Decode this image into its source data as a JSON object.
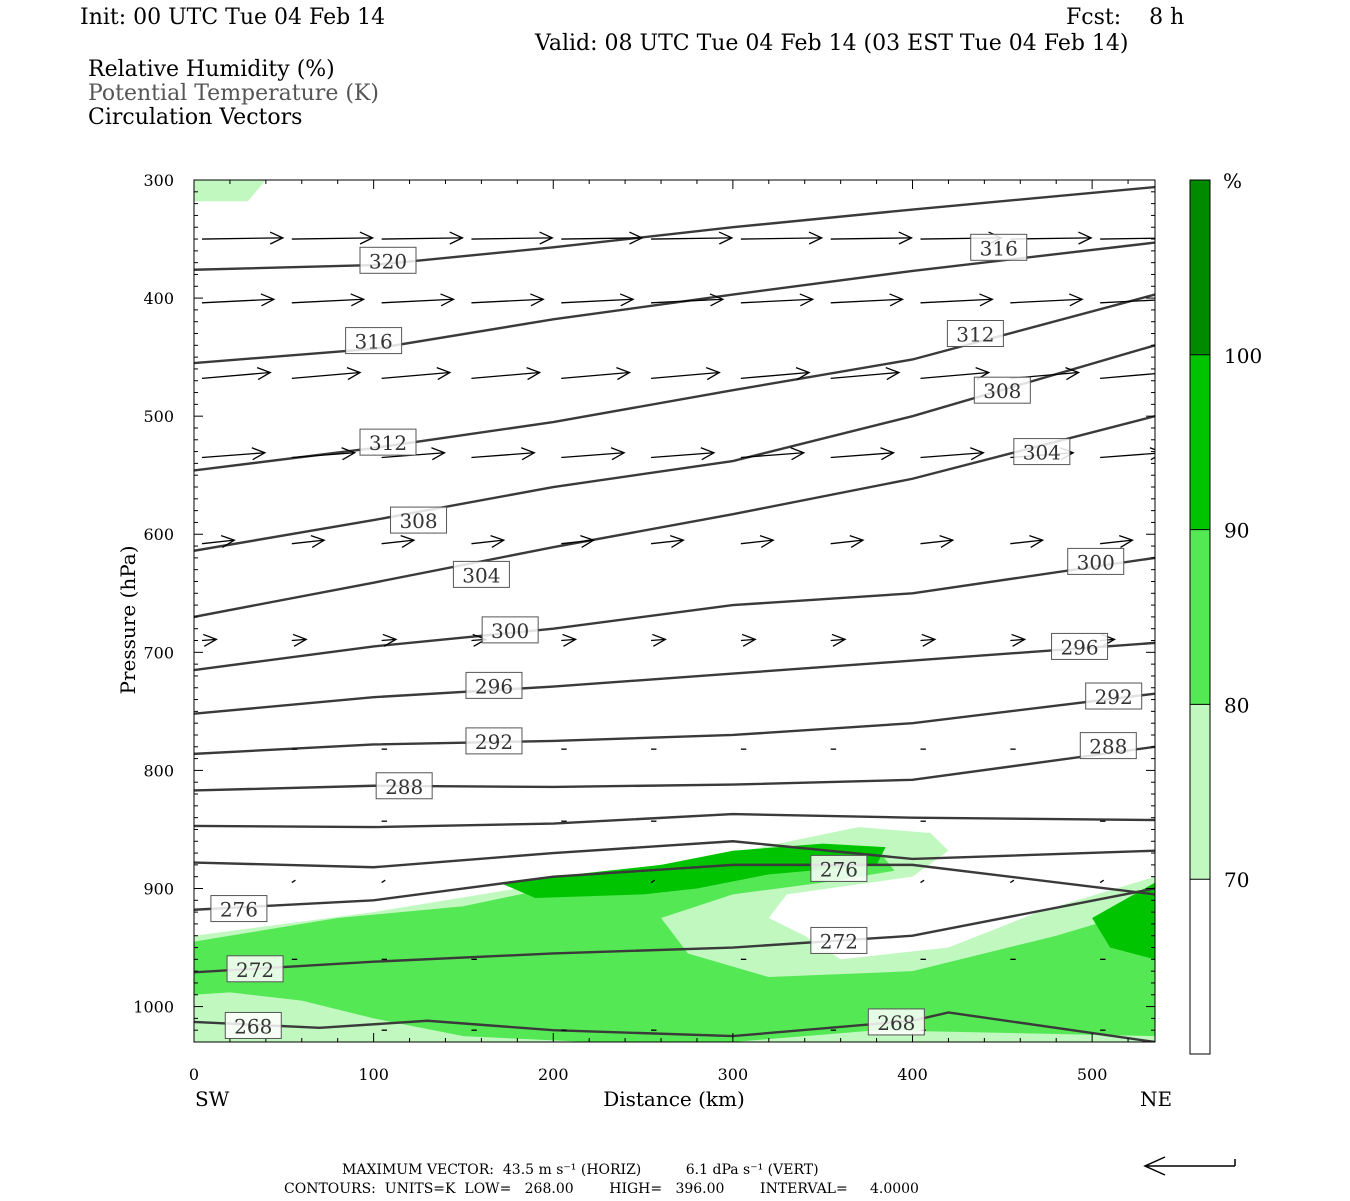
{
  "header": {
    "init": "Init: 00 UTC Tue 04 Feb 14",
    "fcst": "Fcst:    8 h",
    "valid": "Valid: 08 UTC Tue 04 Feb 14 (03 EST Tue 04 Feb 14)",
    "fields": [
      "Relative Humidity (%)",
      "Potential Temperature (K)",
      "Circulation Vectors"
    ]
  },
  "footer": {
    "max_vector": "MAXIMUM VECTOR:  43.5 m s⁻¹ (HORIZ)          6.1 dPa s⁻¹ (VERT)",
    "contours": "CONTOURS:  UNITS=K  LOW=   268.00        HIGH=   396.00        INTERVAL=     4.0000"
  },
  "colors": {
    "rh_70": "#c0f8c0",
    "rh_80": "#55e855",
    "rh_90": "#00c400",
    "rh_100": "#008a00",
    "theta_line": "#3a3a3a"
  },
  "chart_data": {
    "type": "cross-section",
    "xlabel": "Distance (km)",
    "ylabel": "Pressure (hPa)",
    "xlim": [
      0,
      535
    ],
    "ylim": [
      1030,
      300
    ],
    "x_ticks": [
      0,
      100,
      200,
      300,
      400,
      500
    ],
    "y_ticks": [
      300,
      400,
      500,
      600,
      700,
      800,
      900,
      1000
    ],
    "x_end_labels": [
      "SW",
      "NE"
    ],
    "colorbar": {
      "unit": "%",
      "levels": [
        70,
        80,
        90,
        100
      ],
      "labels": [
        "70",
        "80",
        "90",
        "100"
      ]
    },
    "theta_contours": [
      {
        "value": 320,
        "label": "320",
        "points": [
          [
            0,
            376
          ],
          [
            100,
            372
          ],
          [
            200,
            357
          ],
          [
            300,
            340
          ],
          [
            400,
            325
          ],
          [
            535,
            306
          ]
        ],
        "label_at": [
          108,
          368
        ]
      },
      {
        "value": 316,
        "label": "316",
        "points": [
          [
            0,
            455
          ],
          [
            100,
            443
          ],
          [
            200,
            418
          ],
          [
            300,
            397
          ],
          [
            400,
            377
          ],
          [
            535,
            353
          ]
        ],
        "label_at": [
          100,
          436
        ]
      },
      {
        "value": 316,
        "label": "316",
        "points": [],
        "label_at": [
          448,
          357
        ]
      },
      {
        "value": 312,
        "label": "312",
        "points": [
          [
            0,
            546
          ],
          [
            100,
            527
          ],
          [
            200,
            505
          ],
          [
            300,
            478
          ],
          [
            400,
            452
          ],
          [
            535,
            397
          ]
        ],
        "label_at": [
          108,
          522
        ]
      },
      {
        "value": 312,
        "label": "312",
        "points": [],
        "label_at": [
          435,
          430
        ]
      },
      {
        "value": 308,
        "label": "308",
        "points": [
          [
            0,
            614
          ],
          [
            100,
            588
          ],
          [
            200,
            560
          ],
          [
            300,
            538
          ],
          [
            400,
            500
          ],
          [
            535,
            440
          ]
        ],
        "label_at": [
          125,
          588
        ]
      },
      {
        "value": 308,
        "label": "308",
        "points": [],
        "label_at": [
          450,
          478
        ]
      },
      {
        "value": 304,
        "label": "304",
        "points": [
          [
            0,
            670
          ],
          [
            100,
            641
          ],
          [
            200,
            611
          ],
          [
            300,
            583
          ],
          [
            400,
            553
          ],
          [
            535,
            500
          ]
        ],
        "label_at": [
          160,
          634
        ]
      },
      {
        "value": 304,
        "label": "304",
        "points": [],
        "label_at": [
          472,
          530
        ]
      },
      {
        "value": 300,
        "label": "300",
        "points": [
          [
            0,
            715
          ],
          [
            100,
            695
          ],
          [
            200,
            680
          ],
          [
            300,
            660
          ],
          [
            400,
            650
          ],
          [
            535,
            620
          ]
        ],
        "label_at": [
          176,
          681
        ]
      },
      {
        "value": 300,
        "label": "300",
        "points": [],
        "label_at": [
          502,
          623
        ]
      },
      {
        "value": 296,
        "label": "296",
        "points": [
          [
            0,
            752
          ],
          [
            100,
            738
          ],
          [
            200,
            729
          ],
          [
            300,
            718
          ],
          [
            400,
            707
          ],
          [
            535,
            692
          ]
        ],
        "label_at": [
          167,
          728
        ]
      },
      {
        "value": 296,
        "label": "296",
        "points": [],
        "label_at": [
          493,
          695
        ]
      },
      {
        "value": 292,
        "label": "292",
        "points": [
          [
            0,
            786
          ],
          [
            100,
            778
          ],
          [
            200,
            775
          ],
          [
            300,
            770
          ],
          [
            400,
            760
          ],
          [
            535,
            735
          ]
        ],
        "label_at": [
          167,
          775
        ]
      },
      {
        "value": 292,
        "label": "292",
        "points": [],
        "label_at": [
          512,
          737
        ]
      },
      {
        "value": 288,
        "label": "288",
        "points": [
          [
            0,
            817
          ],
          [
            100,
            813
          ],
          [
            200,
            814
          ],
          [
            300,
            812
          ],
          [
            400,
            808
          ],
          [
            535,
            780
          ]
        ],
        "label_at": [
          117,
          813
        ]
      },
      {
        "value": 288,
        "label": "288",
        "points": [],
        "label_at": [
          509,
          779
        ]
      },
      {
        "value": 284,
        "label": "",
        "points": [
          [
            0,
            847
          ],
          [
            100,
            848
          ],
          [
            200,
            845
          ],
          [
            300,
            837
          ],
          [
            400,
            840
          ],
          [
            535,
            842
          ]
        ],
        "label_at": null
      },
      {
        "value": 280,
        "label": "",
        "points": [
          [
            0,
            878
          ],
          [
            100,
            882
          ],
          [
            200,
            870
          ],
          [
            300,
            860
          ],
          [
            400,
            875
          ],
          [
            535,
            868
          ]
        ],
        "label_at": null
      },
      {
        "value": 276,
        "label": "276",
        "points": [
          [
            0,
            918
          ],
          [
            100,
            910
          ],
          [
            200,
            890
          ],
          [
            300,
            880
          ],
          [
            400,
            880
          ],
          [
            535,
            905
          ]
        ],
        "label_at": [
          25,
          917
        ]
      },
      {
        "value": 276,
        "label": "276",
        "points": [],
        "label_at": [
          359,
          883
        ]
      },
      {
        "value": 272,
        "label": "272",
        "points": [
          [
            0,
            971
          ],
          [
            100,
            962
          ],
          [
            200,
            955
          ],
          [
            300,
            950
          ],
          [
            400,
            940
          ],
          [
            535,
            900
          ]
        ],
        "label_at": [
          34,
          968
        ]
      },
      {
        "value": 272,
        "label": "272",
        "points": [],
        "label_at": [
          359,
          944
        ]
      },
      {
        "value": 268,
        "label": "268",
        "points": [
          [
            0,
            1013
          ],
          [
            70,
            1018
          ],
          [
            130,
            1012
          ],
          [
            200,
            1020
          ],
          [
            300,
            1025
          ],
          [
            400,
            1012
          ],
          [
            420,
            1005
          ],
          [
            535,
            1030
          ]
        ],
        "label_at": [
          33,
          1016
        ]
      },
      {
        "value": 268,
        "label": "268",
        "points": [],
        "label_at": [
          391,
          1013
        ]
      }
    ],
    "rh_regions": [
      {
        "level": 70,
        "points": [
          [
            0,
            307
          ],
          [
            0,
            318
          ],
          [
            30,
            318
          ],
          [
            40,
            300
          ],
          [
            0,
            300
          ]
        ]
      },
      {
        "level": 70,
        "points": [
          [
            0,
            940
          ],
          [
            100,
            920
          ],
          [
            200,
            895
          ],
          [
            300,
            870
          ],
          [
            370,
            848
          ],
          [
            410,
            853
          ],
          [
            420,
            868
          ],
          [
            400,
            890
          ],
          [
            330,
            905
          ],
          [
            320,
            925
          ],
          [
            340,
            940
          ],
          [
            360,
            960
          ],
          [
            420,
            950
          ],
          [
            470,
            920
          ],
          [
            535,
            890
          ],
          [
            535,
            1030
          ],
          [
            0,
            1030
          ]
        ]
      },
      {
        "level": 80,
        "points": [
          [
            0,
            945
          ],
          [
            80,
            925
          ],
          [
            150,
            915
          ],
          [
            260,
            880
          ],
          [
            340,
            868
          ],
          [
            380,
            866
          ],
          [
            390,
            885
          ],
          [
            350,
            895
          ],
          [
            300,
            905
          ],
          [
            260,
            925
          ],
          [
            275,
            955
          ],
          [
            320,
            975
          ],
          [
            400,
            970
          ],
          [
            480,
            940
          ],
          [
            535,
            915
          ],
          [
            535,
            1025
          ],
          [
            380,
            1020
          ],
          [
            300,
            1030
          ],
          [
            220,
            1030
          ],
          [
            150,
            1025
          ],
          [
            100,
            1010
          ],
          [
            60,
            995
          ],
          [
            20,
            988
          ],
          [
            0,
            990
          ]
        ]
      },
      {
        "level": 90,
        "points": [
          [
            170,
            895
          ],
          [
            260,
            880
          ],
          [
            300,
            868
          ],
          [
            350,
            862
          ],
          [
            385,
            865
          ],
          [
            380,
            880
          ],
          [
            320,
            888
          ],
          [
            280,
            900
          ],
          [
            250,
            905
          ],
          [
            190,
            908
          ]
        ]
      },
      {
        "level": 90,
        "points": [
          [
            500,
            925
          ],
          [
            535,
            895
          ],
          [
            535,
            960
          ],
          [
            510,
            950
          ]
        ]
      }
    ],
    "wind_vectors": [
      {
        "p": 350,
        "x_start": [
          0,
          50,
          100,
          150,
          200,
          250,
          300,
          350,
          400,
          450,
          500
        ],
        "dx": 45,
        "dp": -1
      },
      {
        "p": 404,
        "x_start": [
          0,
          50,
          100,
          150,
          200,
          250,
          300,
          350,
          400,
          450,
          500
        ],
        "dx": 40,
        "dp": -3
      },
      {
        "p": 468,
        "x_start": [
          0,
          50,
          100,
          150,
          200,
          250,
          300,
          350,
          400,
          450,
          500
        ],
        "dx": 38,
        "dp": -5
      },
      {
        "p": 535,
        "x_start": [
          0,
          50,
          100,
          150,
          200,
          250,
          300,
          350,
          400,
          450,
          500
        ],
        "dx": 35,
        "dp": -4
      },
      {
        "p": 608,
        "x_start": [
          0,
          50,
          100,
          150,
          200,
          250,
          300,
          350,
          400,
          450,
          500
        ],
        "dx": 18,
        "dp": -3
      },
      {
        "p": 690,
        "x_start": [
          0,
          50,
          100,
          150,
          200,
          250,
          300,
          350,
          400,
          450,
          500
        ],
        "dx": 8,
        "dp": -1
      },
      {
        "p": 782,
        "x_start": [
          50,
          100,
          200,
          250,
          300,
          350,
          400,
          450
        ],
        "dx": 3,
        "dp": 0
      },
      {
        "p": 843,
        "x_start": [
          100,
          200,
          250,
          400,
          500
        ],
        "dx": 3,
        "dp": 0
      },
      {
        "p": 895,
        "x_start": [
          50,
          100,
          250,
          400,
          450,
          500
        ],
        "dx": 2,
        "dp": -2
      },
      {
        "p": 960,
        "x_start": [
          50,
          100,
          150,
          300,
          400,
          450,
          500
        ],
        "dx": 3,
        "dp": 0
      },
      {
        "p": 1020,
        "x_start": [
          100,
          150,
          200,
          250,
          350,
          400,
          500
        ],
        "dx": 3,
        "dp": 0
      }
    ]
  }
}
